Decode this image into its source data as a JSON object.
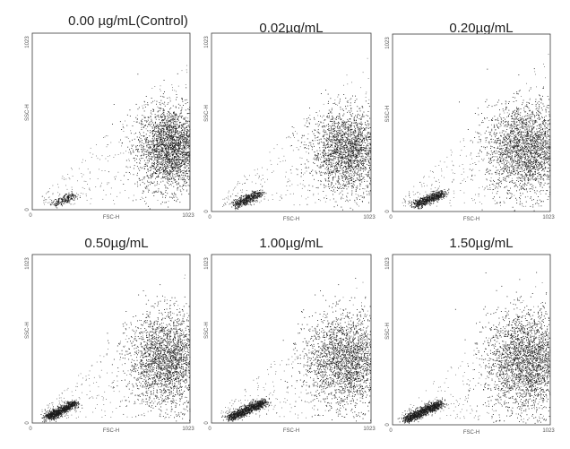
{
  "figure": {
    "panel_titles": [
      "0.00 µg/mL(Control)",
      "0.02µg/mL",
      "0.20µg/mL",
      "0.50µg/mL",
      "1.00µg/mL",
      "1.50µg/mL"
    ]
  },
  "chart_data": [
    {
      "type": "scatter",
      "title": "0.00 µg/mL(Control)",
      "xlabel": "FSC-H",
      "ylabel": "SSC-H",
      "xlim": [
        0,
        1023
      ],
      "ylim": [
        0,
        1023
      ],
      "x_ticks": [
        "0",
        "1023"
      ],
      "y_ticks": [
        "0",
        "1023"
      ],
      "clusters": [
        {
          "center": [
            900,
            360
          ],
          "spread": [
            110,
            120
          ],
          "points": 2600
        },
        {
          "center": [
            180,
            50
          ],
          "spread": [
            60,
            25
          ],
          "points": 220
        }
      ]
    },
    {
      "type": "scatter",
      "title": "0.02µg/mL",
      "xlabel": "FSC-H",
      "ylabel": "SSC-H",
      "xlim": [
        0,
        1023
      ],
      "ylim": [
        0,
        1023
      ],
      "x_ticks": [
        "0",
        "1023"
      ],
      "y_ticks": [
        "0",
        "1023"
      ],
      "clusters": [
        {
          "center": [
            880,
            350
          ],
          "spread": [
            120,
            115
          ],
          "points": 2200
        },
        {
          "center": [
            200,
            60
          ],
          "spread": [
            80,
            35
          ],
          "points": 500
        }
      ]
    },
    {
      "type": "scatter",
      "title": "0.20µg/mL",
      "xlabel": "FSC-H",
      "ylabel": "SSC-H",
      "xlim": [
        0,
        1023
      ],
      "ylim": [
        0,
        1023
      ],
      "x_ticks": [
        "0",
        "1023"
      ],
      "y_ticks": [
        "0",
        "1023"
      ],
      "clusters": [
        {
          "center": [
            870,
            360
          ],
          "spread": [
            130,
            130
          ],
          "points": 2400
        },
        {
          "center": [
            200,
            60
          ],
          "spread": [
            90,
            35
          ],
          "points": 650
        }
      ]
    },
    {
      "type": "scatter",
      "title": "0.50µg/mL",
      "xlabel": "FSC-H",
      "ylabel": "SSC-H",
      "xlim": [
        0,
        1023
      ],
      "ylim": [
        0,
        1023
      ],
      "x_ticks": [
        "0",
        "1023"
      ],
      "y_ticks": [
        "0",
        "1023"
      ],
      "clusters": [
        {
          "center": [
            880,
            380
          ],
          "spread": [
            130,
            140
          ],
          "points": 2400
        },
        {
          "center": [
            150,
            60
          ],
          "spread": [
            90,
            45
          ],
          "points": 900
        }
      ]
    },
    {
      "type": "scatter",
      "title": "1.00µg/mL",
      "xlabel": "FSC-H",
      "ylabel": "SSC-H",
      "xlim": [
        0,
        1023
      ],
      "ylim": [
        0,
        1023
      ],
      "x_ticks": [
        "0",
        "1023"
      ],
      "y_ticks": [
        "0",
        "1023"
      ],
      "clusters": [
        {
          "center": [
            870,
            380
          ],
          "spread": [
            140,
            140
          ],
          "points": 2400
        },
        {
          "center": [
            180,
            60
          ],
          "spread": [
            110,
            50
          ],
          "points": 1000
        }
      ]
    },
    {
      "type": "scatter",
      "title": "1.50µg/mL",
      "xlabel": "FSC-H",
      "ylabel": "SSC-H",
      "xlim": [
        0,
        1023
      ],
      "ylim": [
        0,
        1023
      ],
      "x_ticks": [
        "0",
        "1023"
      ],
      "y_ticks": [
        "0",
        "1023"
      ],
      "clusters": [
        {
          "center": [
            880,
            380
          ],
          "spread": [
            140,
            150
          ],
          "points": 2700
        },
        {
          "center": [
            150,
            60
          ],
          "spread": [
            110,
            50
          ],
          "points": 1100
        }
      ]
    }
  ]
}
